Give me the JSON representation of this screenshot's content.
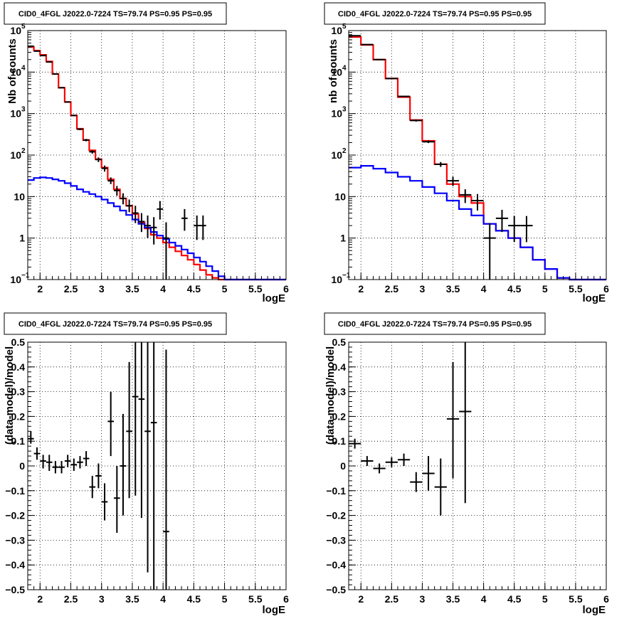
{
  "chart_data": [
    {
      "id": "counts-left",
      "type": "line",
      "title": "CID0_4FGL J2022.0-7224 TS=79.74 PS=0.95 PS=0.95",
      "xlabel": "logE",
      "ylabel": "Nb of counts",
      "xlim": [
        1.8,
        6.0
      ],
      "ylim": [
        0.1,
        100000
      ],
      "yscale": "log",
      "grid": true,
      "xticks": [
        2,
        2.5,
        3,
        3.5,
        4,
        4.5,
        5,
        5.5,
        6
      ],
      "xtick_labels": [
        "2",
        "2.5",
        "3",
        "3.5",
        "4",
        "4.5",
        "5",
        "5.5",
        "6"
      ],
      "yticks": [
        {
          "v": 0.1,
          "label": "10",
          "sup": "−1"
        },
        {
          "v": 1,
          "label": "1",
          "sup": ""
        },
        {
          "v": 10,
          "label": "10",
          "sup": ""
        },
        {
          "v": 100,
          "label": "10",
          "sup": "2"
        },
        {
          "v": 1000,
          "label": "10",
          "sup": "3"
        },
        {
          "v": 10000,
          "label": "10",
          "sup": "4"
        },
        {
          "v": 100000,
          "label": "10",
          "sup": "5"
        }
      ],
      "series": [
        {
          "kind": "step",
          "color": "#ff0000",
          "edges": [
            1.8,
            1.9,
            2.0,
            2.1,
            2.2,
            2.3,
            2.4,
            2.5,
            2.6,
            2.7,
            2.8,
            2.9,
            3.0,
            3.1,
            3.2,
            3.3,
            3.4,
            3.5,
            3.6,
            3.7,
            3.8,
            3.9,
            4.0,
            4.1,
            4.2,
            4.3,
            4.4,
            4.5,
            4.6,
            4.7,
            4.8,
            4.9,
            5.0,
            5.1,
            5.2,
            5.3,
            5.4,
            5.5,
            5.6,
            5.7,
            5.8,
            5.9,
            6.0
          ],
          "values": [
            40000,
            33000,
            26000,
            18000,
            9000,
            4200,
            1900,
            900,
            430,
            230,
            130,
            80,
            50,
            26,
            15,
            9,
            6,
            3.8,
            2.4,
            1.7,
            1.2,
            1.0,
            0.78,
            0.6,
            0.48,
            0.38,
            0.3,
            0.23,
            0.17,
            0.13,
            0.11,
            0.1,
            0.1,
            0.1,
            0.1,
            0.1,
            0.1,
            0.1,
            0.1,
            0.1,
            0.1,
            0.1
          ]
        },
        {
          "kind": "step",
          "color": "#0000ff",
          "edges": [
            1.8,
            1.9,
            2.0,
            2.1,
            2.2,
            2.3,
            2.4,
            2.5,
            2.6,
            2.7,
            2.8,
            2.9,
            3.0,
            3.1,
            3.2,
            3.3,
            3.4,
            3.5,
            3.6,
            3.7,
            3.8,
            3.9,
            4.0,
            4.1,
            4.2,
            4.3,
            4.4,
            4.5,
            4.6,
            4.7,
            4.8,
            4.9,
            5.0,
            5.1,
            5.2,
            5.3,
            5.4,
            5.5,
            5.6,
            5.7,
            5.8,
            5.9,
            6.0
          ],
          "values": [
            25,
            28,
            29,
            28,
            26,
            24,
            21,
            18,
            15,
            13,
            11.5,
            10,
            8.5,
            7,
            5.8,
            4.6,
            3.6,
            2.8,
            2.2,
            1.8,
            1.4,
            1.15,
            0.95,
            0.78,
            0.65,
            0.53,
            0.43,
            0.34,
            0.27,
            0.21,
            0.16,
            0.12,
            0.1,
            0.1,
            0.1,
            0.1,
            0.1,
            0.1,
            0.1,
            0.1,
            0.1,
            0.1
          ]
        },
        {
          "kind": "points",
          "color": "#000000",
          "x": [
            1.85,
            1.95,
            2.05,
            2.15,
            2.25,
            2.35,
            2.45,
            2.55,
            2.65,
            2.75,
            2.85,
            2.95,
            3.05,
            3.15,
            3.25,
            3.35,
            3.45,
            3.55,
            3.65,
            3.75,
            3.85,
            3.95,
            4.05,
            4.35,
            4.55,
            4.65
          ],
          "xerr": [
            0.05,
            0.05,
            0.05,
            0.05,
            0.05,
            0.05,
            0.05,
            0.05,
            0.05,
            0.05,
            0.05,
            0.05,
            0.05,
            0.05,
            0.05,
            0.05,
            0.05,
            0.05,
            0.05,
            0.05,
            0.05,
            0.05,
            0.05,
            0.05,
            0.05,
            0.05
          ],
          "y": [
            42000,
            32000,
            25000,
            17500,
            9000,
            4200,
            1900,
            900,
            420,
            230,
            120,
            78,
            48,
            24,
            14,
            9,
            6,
            4,
            2.5,
            2,
            1.8,
            5,
            1,
            3,
            2,
            2
          ],
          "ylo": [
            41000,
            31400,
            24500,
            17200,
            8800,
            4100,
            1850,
            870,
            400,
            215,
            108,
            68,
            40,
            20,
            10.5,
            6.5,
            4.2,
            2.3,
            1.4,
            1.0,
            0.7,
            2.8,
            0.1,
            1.5,
            0.9,
            0.9
          ],
          "yhi": [
            43000,
            32600,
            25500,
            17800,
            9200,
            4300,
            1950,
            930,
            440,
            245,
            132,
            88,
            56,
            29,
            18,
            12,
            8.5,
            6,
            4,
            3.5,
            3.2,
            7.8,
            2.4,
            5,
            3.5,
            3.5
          ]
        }
      ]
    },
    {
      "id": "counts-right",
      "type": "line",
      "title": "CID0_4FGL J2022.0-7224 TS=79.74 PS=0.95 PS=0.95",
      "xlabel": "logE",
      "ylabel": "nb of counts",
      "xlim": [
        1.8,
        6.0
      ],
      "ylim": [
        0.1,
        100000
      ],
      "yscale": "log",
      "grid": true,
      "xticks": [
        2,
        2.5,
        3,
        3.5,
        4,
        4.5,
        5,
        5.5,
        6
      ],
      "xtick_labels": [
        "2",
        "2.5",
        "3",
        "3.5",
        "4",
        "4.5",
        "5",
        "5.5",
        "6"
      ],
      "yticks": [
        {
          "v": 0.1,
          "label": "10",
          "sup": "−1"
        },
        {
          "v": 1,
          "label": "1",
          "sup": ""
        },
        {
          "v": 10,
          "label": "10",
          "sup": ""
        },
        {
          "v": 100,
          "label": "10",
          "sup": "2"
        },
        {
          "v": 1000,
          "label": "10",
          "sup": "3"
        },
        {
          "v": 10000,
          "label": "10",
          "sup": "4"
        },
        {
          "v": 100000,
          "label": "10",
          "sup": "5"
        }
      ],
      "series": [
        {
          "kind": "step",
          "color": "#ff0000",
          "edges": [
            1.8,
            2.0,
            2.2,
            2.4,
            2.6,
            2.8,
            3.0,
            3.2,
            3.4,
            3.6,
            3.8,
            4.0,
            4.2,
            4.4,
            4.6,
            4.8,
            5.0,
            5.2,
            5.4,
            5.6,
            5.8,
            6.0
          ],
          "values": [
            70000,
            45000,
            20000,
            7000,
            2500,
            700,
            220,
            60,
            20,
            10,
            7,
            2.2,
            1.5,
            1.0,
            0.6,
            0.3,
            0.18,
            0.11,
            0.1,
            0.1,
            0.1
          ]
        },
        {
          "kind": "step",
          "color": "#0000ff",
          "edges": [
            1.8,
            2.0,
            2.2,
            2.4,
            2.6,
            2.8,
            3.0,
            3.2,
            3.4,
            3.6,
            3.8,
            4.0,
            4.2,
            4.4,
            4.6,
            4.8,
            5.0,
            5.2,
            5.4,
            5.6,
            5.8,
            6.0
          ],
          "values": [
            50,
            55,
            47,
            38,
            30,
            24,
            17,
            12,
            8,
            5,
            3.5,
            2.2,
            1.5,
            1.0,
            0.6,
            0.3,
            0.18,
            0.11,
            0.1,
            0.1,
            0.1
          ]
        },
        {
          "kind": "points",
          "color": "#000000",
          "x": [
            1.9,
            2.1,
            2.3,
            2.5,
            2.7,
            2.9,
            3.1,
            3.3,
            3.5,
            3.7,
            3.9,
            4.1,
            4.3,
            4.5,
            4.7
          ],
          "xerr": [
            0.1,
            0.1,
            0.1,
            0.1,
            0.1,
            0.1,
            0.1,
            0.1,
            0.1,
            0.1,
            0.1,
            0.1,
            0.1,
            0.1,
            0.1
          ],
          "y": [
            75000,
            46000,
            20000,
            7000,
            2600,
            680,
            210,
            60,
            24,
            11,
            8,
            1,
            3,
            2,
            2
          ],
          "ylo": [
            74000,
            45400,
            19600,
            6850,
            2500,
            640,
            195,
            52,
            18,
            7,
            4.6,
            0.1,
            1.4,
            0.8,
            0.8
          ],
          "yhi": [
            76000,
            46600,
            20400,
            7150,
            2700,
            720,
            225,
            68,
            30,
            15,
            11.5,
            2.3,
            4.8,
            3.4,
            3.4
          ]
        }
      ]
    },
    {
      "id": "residuals-left",
      "type": "scatter",
      "title": "CID0_4FGL J2022.0-7224 TS=79.74 PS=0.95 PS=0.95",
      "xlabel": "logE",
      "ylabel": "(data-model)/model",
      "xlim": [
        1.8,
        6.0
      ],
      "ylim": [
        -0.5,
        0.5
      ],
      "yscale": "linear",
      "grid": true,
      "xticks": [
        2,
        2.5,
        3,
        3.5,
        4,
        4.5,
        5,
        5.5,
        6
      ],
      "xtick_labels": [
        "2",
        "2.5",
        "3",
        "3.5",
        "4",
        "4.5",
        "5",
        "5.5",
        "6"
      ],
      "yticks": [
        {
          "v": -0.5,
          "label": "−0.5",
          "sup": ""
        },
        {
          "v": -0.4,
          "label": "−0.4",
          "sup": ""
        },
        {
          "v": -0.3,
          "label": "−0.3",
          "sup": ""
        },
        {
          "v": -0.2,
          "label": "−0.2",
          "sup": ""
        },
        {
          "v": -0.1,
          "label": "−0.1",
          "sup": ""
        },
        {
          "v": 0,
          "label": "0",
          "sup": ""
        },
        {
          "v": 0.1,
          "label": "0.1",
          "sup": ""
        },
        {
          "v": 0.2,
          "label": "0.2",
          "sup": ""
        },
        {
          "v": 0.3,
          "label": "0.3",
          "sup": ""
        },
        {
          "v": 0.4,
          "label": "0.4",
          "sup": ""
        },
        {
          "v": 0.5,
          "label": "0.5",
          "sup": ""
        }
      ],
      "series": [
        {
          "kind": "points",
          "color": "#000000",
          "x": [
            1.85,
            1.95,
            2.05,
            2.15,
            2.25,
            2.35,
            2.45,
            2.55,
            2.65,
            2.75,
            2.85,
            2.95,
            3.05,
            3.15,
            3.25,
            3.35,
            3.45,
            3.55,
            3.65,
            3.75,
            3.85,
            4.05
          ],
          "xerr": [
            0.05,
            0.05,
            0.05,
            0.05,
            0.05,
            0.05,
            0.05,
            0.05,
            0.05,
            0.05,
            0.05,
            0.05,
            0.05,
            0.05,
            0.05,
            0.05,
            0.05,
            0.05,
            0.05,
            0.05,
            0.05,
            0.05
          ],
          "y": [
            0.11,
            0.05,
            0.02,
            0.015,
            -0.005,
            -0.005,
            0.02,
            0.005,
            0.015,
            0.03,
            -0.085,
            -0.04,
            -0.145,
            0.18,
            -0.13,
            0.0,
            0.14,
            0.28,
            0.27,
            0.14,
            0.175,
            -0.265
          ],
          "ylo": [
            0.09,
            0.025,
            -0.01,
            -0.02,
            -0.03,
            -0.03,
            -0.005,
            -0.02,
            -0.01,
            0.0,
            -0.13,
            -0.09,
            -0.22,
            0.04,
            -0.27,
            -0.2,
            -0.13,
            -0.12,
            -0.21,
            -0.43,
            -0.5,
            -0.5
          ],
          "yhi": [
            0.14,
            0.075,
            0.045,
            0.045,
            0.02,
            0.02,
            0.045,
            0.03,
            0.04,
            0.06,
            -0.04,
            0.01,
            -0.07,
            0.3,
            0.0,
            0.21,
            0.42,
            0.5,
            0.5,
            0.5,
            0.5,
            0.47
          ]
        }
      ]
    },
    {
      "id": "residuals-right",
      "type": "scatter",
      "title": "CID0_4FGL J2022.0-7224 TS=79.74 PS=0.95 PS=0.95",
      "xlabel": "logE",
      "ylabel": "(data-model)/model",
      "xlim": [
        1.8,
        6.0
      ],
      "ylim": [
        -0.5,
        0.5
      ],
      "yscale": "linear",
      "grid": true,
      "xticks": [
        2,
        2.5,
        3,
        3.5,
        4,
        4.5,
        5,
        5.5,
        6
      ],
      "xtick_labels": [
        "2",
        "2.5",
        "3",
        "3.5",
        "4",
        "4.5",
        "5",
        "5.5",
        "6"
      ],
      "yticks": [
        {
          "v": -0.5,
          "label": "−0.5",
          "sup": ""
        },
        {
          "v": -0.4,
          "label": "−0.4",
          "sup": ""
        },
        {
          "v": -0.3,
          "label": "−0.3",
          "sup": ""
        },
        {
          "v": -0.2,
          "label": "−0.2",
          "sup": ""
        },
        {
          "v": -0.1,
          "label": "−0.1",
          "sup": ""
        },
        {
          "v": 0,
          "label": "0",
          "sup": ""
        },
        {
          "v": 0.1,
          "label": "0.1",
          "sup": ""
        },
        {
          "v": 0.2,
          "label": "0.2",
          "sup": ""
        },
        {
          "v": 0.3,
          "label": "0.3",
          "sup": ""
        },
        {
          "v": 0.4,
          "label": "0.4",
          "sup": ""
        },
        {
          "v": 0.5,
          "label": "0.5",
          "sup": ""
        }
      ],
      "series": [
        {
          "kind": "points",
          "color": "#000000",
          "x": [
            1.9,
            2.1,
            2.3,
            2.5,
            2.7,
            2.9,
            3.1,
            3.3,
            3.5,
            3.7
          ],
          "xerr": [
            0.1,
            0.1,
            0.1,
            0.1,
            0.1,
            0.1,
            0.1,
            0.1,
            0.1,
            0.1
          ],
          "y": [
            0.09,
            0.02,
            -0.01,
            0.015,
            0.025,
            -0.065,
            -0.03,
            -0.085,
            0.19,
            0.22
          ],
          "ylo": [
            0.07,
            0.0,
            -0.03,
            -0.005,
            0.0,
            -0.105,
            -0.1,
            -0.2,
            -0.05,
            -0.15
          ],
          "yhi": [
            0.11,
            0.04,
            0.01,
            0.035,
            0.05,
            -0.025,
            0.04,
            0.03,
            0.42,
            0.5
          ]
        }
      ]
    }
  ]
}
